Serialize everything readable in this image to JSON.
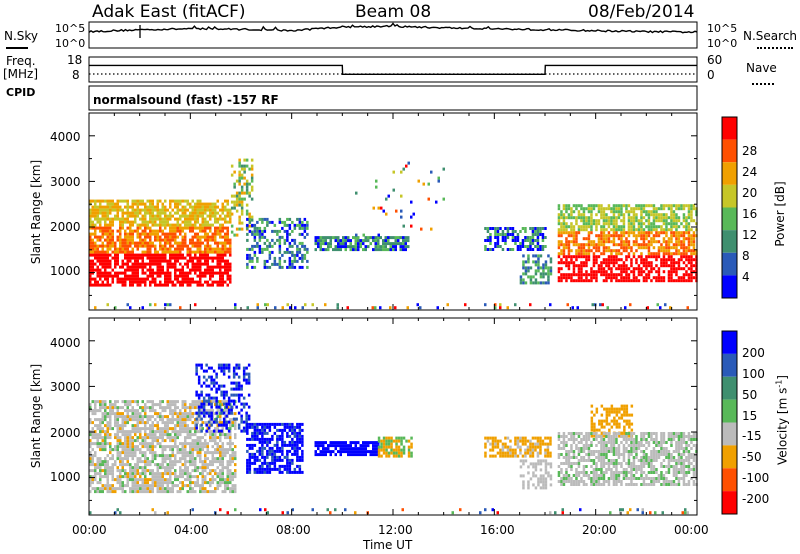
{
  "header": {
    "station": "Adak East (fitACF)",
    "beam": "Beam 08",
    "date": "08/Feb/2014"
  },
  "top_labels": {
    "nsky": "N.Sky",
    "nsearch": "N.Search",
    "freq": "Freq.",
    "mhz": "[MHz]",
    "nave": "Nave",
    "cpid": "CPID",
    "left_top_tick": "10^5",
    "left_bottom_tick": "10^0",
    "right_top_tick": "10^5",
    "right_bottom_tick": "10^0",
    "freq_top": "18",
    "freq_bottom": "8",
    "nave_top": "60",
    "nave_bottom": "0"
  },
  "cpid_text": "normalsound (fast) -157 RF",
  "chart_data": [
    {
      "type": "line",
      "name_label": "N.Sky / N.Search",
      "x": [
        "00:00",
        "02:00",
        "04:00",
        "06:00",
        "08:00",
        "10:00",
        "12:00",
        "14:00",
        "16:00",
        "18:00",
        "20:00",
        "22:00",
        "24:00"
      ],
      "series": [
        {
          "values": [
            3.2,
            3.6,
            3.8,
            3.7,
            3.4,
            4.2,
            4.3,
            4.0,
            3.8,
            3.6,
            3.4,
            3.2,
            3.1
          ]
        }
      ],
      "ylim": [
        0,
        5
      ]
    },
    {
      "type": "line",
      "x": [
        "00:00",
        "10:00",
        "10:01",
        "18:00",
        "18:01",
        "24:00"
      ],
      "series": [
        {
          "name": "Freq.",
          "values": [
            14.5,
            14.5,
            10.8,
            10.8,
            14.5,
            14.5
          ]
        }
      ],
      "ylim": [
        8,
        18
      ]
    },
    {
      "type": "heatmap",
      "ylabel": "Slant Range [km]",
      "y_ticks": [
        "1000",
        "2000",
        "3000",
        "4000"
      ],
      "colorbar_label": "Power [dB]",
      "colorbar_ticks": [
        "4",
        "8",
        "12",
        "16",
        "20",
        "24",
        "28"
      ],
      "colorbar_colors": [
        "#0000ff",
        "#2a5ab8",
        "#3f8f6f",
        "#58b858",
        "#c6c628",
        "#f0a000",
        "#ff5000",
        "#ff0000"
      ]
    },
    {
      "type": "heatmap",
      "ylabel": "Slant Range [km]",
      "y_ticks": [
        "1000",
        "2000",
        "3000",
        "4000"
      ],
      "colorbar_label": "Velocity [m s^-1]",
      "colorbar_ticks": [
        "200",
        "100",
        "50",
        "15",
        "-15",
        "-50",
        "-100",
        "-200"
      ],
      "colorbar_colors": [
        "#0000ff",
        "#2a5ab8",
        "#3f8f6f",
        "#58b858",
        "#bbbbbb",
        "#f0a000",
        "#ff5000",
        "#ff0000"
      ],
      "xlabel": "Time UT",
      "x_ticks": [
        "00:00",
        "04:00",
        "08:00",
        "12:00",
        "16:00",
        "20:00",
        "00:00"
      ]
    }
  ]
}
